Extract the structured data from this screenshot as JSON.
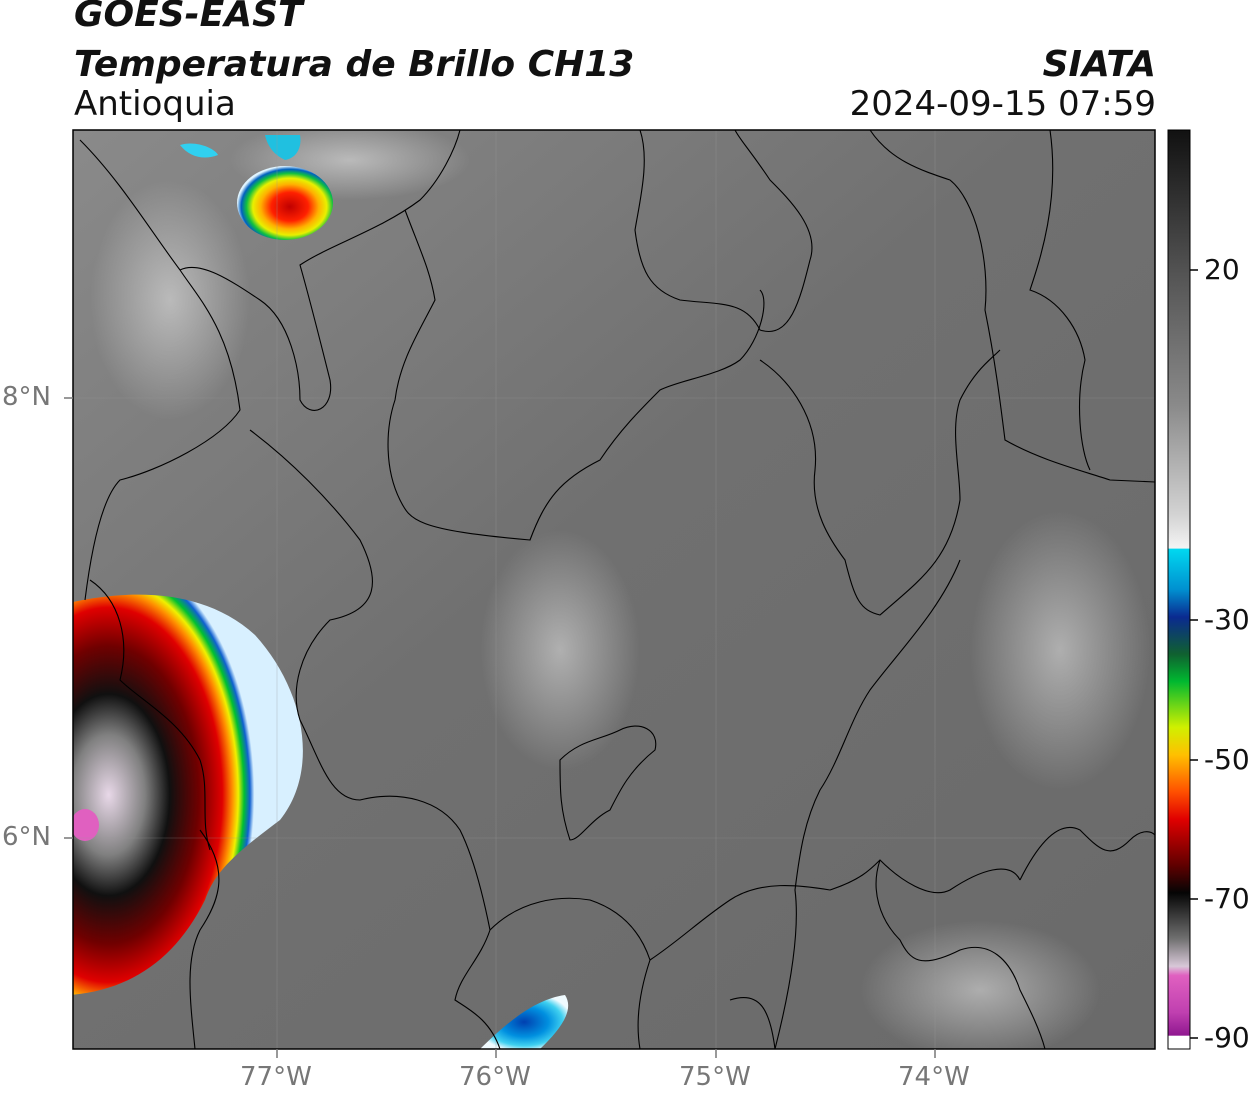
{
  "header": {
    "satellite": "GOES-EAST",
    "product": "Temperatura de Brillo CH13",
    "region": "Antioquia",
    "organization": "SIATA",
    "timestamp": "2024-09-15 07:59"
  },
  "map": {
    "longitude_ticks": [
      "77°W",
      "76°W",
      "75°W",
      "74°W"
    ],
    "latitude_ticks": [
      "8°N",
      "6°N"
    ]
  },
  "colorbar": {
    "tick_labels": [
      "20",
      "-30",
      "-50",
      "-70",
      "-90"
    ],
    "colors": {
      "warm_gray_top": "#111111",
      "white": "#f2f2f2",
      "cyan": "#00d8f0",
      "blue": "#0a2a90",
      "green": "#00b830",
      "yellow": "#f0e000",
      "orange": "#ff8000",
      "red": "#e00000",
      "dark_red": "#600000",
      "black": "#050505",
      "pink": "#e060c0",
      "purple": "#901890"
    }
  }
}
